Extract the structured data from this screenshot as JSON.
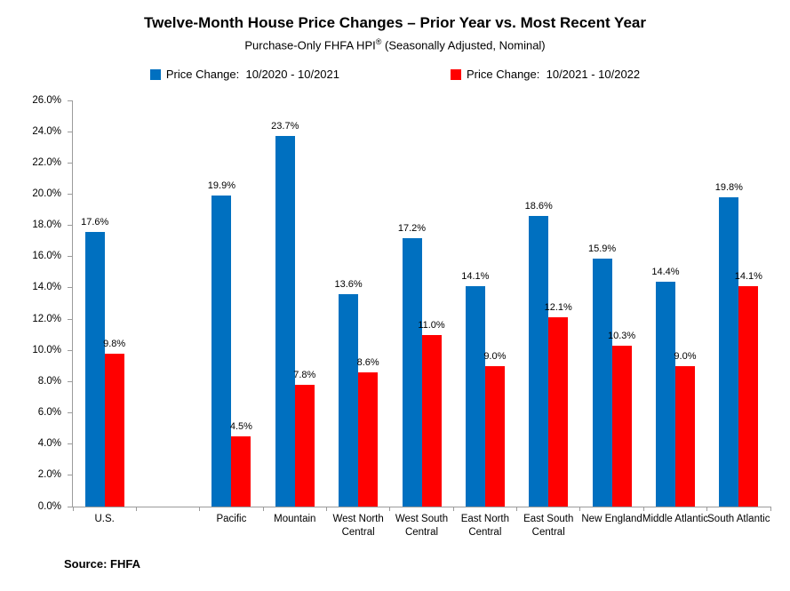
{
  "title": "Twelve-Month House Price Changes – Prior Year vs. Most Recent Year",
  "subtitle": {
    "text": "Purchase-Only FHFA HPI",
    "reg": "®",
    "rest": " (Seasonally Adjusted, Nominal)"
  },
  "source": "Source: FHFA",
  "colors": {
    "series_blue": "#0070C0",
    "series_red": "#FF0000",
    "axis": "#9B9B9B",
    "text": "#000000"
  },
  "chart_data": {
    "type": "bar",
    "title": "Twelve-Month House Price Changes – Prior Year vs. Most Recent Year",
    "subtitle": "Purchase-Only FHFA HPI® (Seasonally Adjusted, Nominal)",
    "categories": [
      "U.S.",
      "Pacific",
      "Mountain",
      "West North Central",
      "West South Central",
      "East North Central",
      "East South Central",
      "New England",
      "Middle Atlantic",
      "South Atlantic"
    ],
    "series": [
      {
        "name": "Price Change:  10/2020 - 10/2021",
        "color": "#0070C0",
        "values": [
          17.6,
          19.9,
          23.7,
          13.6,
          17.2,
          14.1,
          18.6,
          15.9,
          14.4,
          19.8
        ]
      },
      {
        "name": "Price Change:  10/2021 - 10/2022",
        "color": "#FF0000",
        "values": [
          9.8,
          4.5,
          7.8,
          8.6,
          11.0,
          9.0,
          12.1,
          10.3,
          9.0,
          14.1
        ]
      }
    ],
    "xlabel": "",
    "ylabel": "",
    "ylim": [
      0,
      26
    ],
    "ytick_step": 2,
    "ytick_format": "0.0%",
    "data_label_format": "0.0%",
    "grid": false,
    "legend_position": "top",
    "spacer_slots": [
      1
    ]
  }
}
